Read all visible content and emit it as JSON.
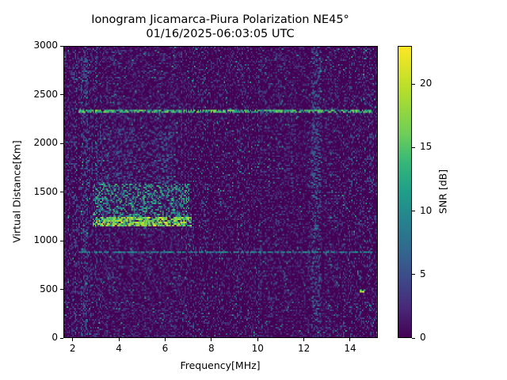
{
  "title": {
    "line1": "Ionogram Jicamarca-Piura Polarization NE45°",
    "line2": "01/16/2025-06:03:05 UTC"
  },
  "chart_data": {
    "type": "heatmap",
    "title": "Ionogram Jicamarca-Piura Polarization NE45° 01/16/2025-06:03:05 UTC",
    "xlabel": "Frequency[MHz]",
    "ylabel": "Virtual Distance[Km]",
    "xlim": [
      1.6,
      15.2
    ],
    "ylim": [
      0,
      3000
    ],
    "xticks": [
      2,
      4,
      6,
      8,
      10,
      12,
      14
    ],
    "xtick_labels": [
      "2",
      "4",
      "6",
      "8",
      "10",
      "12",
      "14"
    ],
    "yticks": [
      0,
      500,
      1000,
      1500,
      2000,
      2500,
      3000
    ],
    "ytick_labels": [
      "0",
      "500",
      "1000",
      "1500",
      "2000",
      "2500",
      "3000"
    ],
    "colorbar": {
      "label": "SNR [dB]",
      "range": [
        0,
        23
      ],
      "ticks": [
        0,
        5,
        10,
        15,
        20
      ],
      "tick_labels": [
        "0",
        "5",
        "10",
        "15",
        "20"
      ],
      "colormap": "viridis"
    },
    "grid": false,
    "features": [
      {
        "name": "F-layer trace (strong echo)",
        "freq_range_mhz": [
          2.8,
          7.1
        ],
        "distance_km": [
          1150,
          1250
        ],
        "snr_db": 22
      },
      {
        "name": "F-layer spread echoes",
        "freq_range_mhz": [
          2.8,
          7.0
        ],
        "distance_km": [
          1250,
          1600
        ],
        "snr_db": 15
      },
      {
        "name": "Diffuse echoes above trace",
        "freq_range_mhz": [
          2.5,
          6.5
        ],
        "distance_km": [
          1600,
          2200
        ],
        "snr_db": 8
      },
      {
        "name": "Horizontal interference line",
        "freq_range_mhz": [
          2.2,
          15.0
        ],
        "distance_km": [
          2340,
          2340
        ],
        "snr_db": 18
      },
      {
        "name": "Horizontal line (weak)",
        "freq_range_mhz": [
          2.2,
          15.0
        ],
        "distance_km": [
          890,
          890
        ],
        "snr_db": 12
      },
      {
        "name": "Broadband vertical band",
        "freq_range_mhz": [
          12.3,
          12.7
        ],
        "distance_km": [
          0,
          3000
        ],
        "snr_db": 8
      },
      {
        "name": "Vertical band",
        "freq_range_mhz": [
          2.3,
          2.6
        ],
        "distance_km": [
          0,
          3000
        ],
        "snr_db": 7
      },
      {
        "name": "Spot echo",
        "freq_range_mhz": [
          14.4,
          14.7
        ],
        "distance_km": [
          490,
          490
        ],
        "snr_db": 22
      }
    ],
    "background_snr_db": [
      0,
      4
    ]
  }
}
